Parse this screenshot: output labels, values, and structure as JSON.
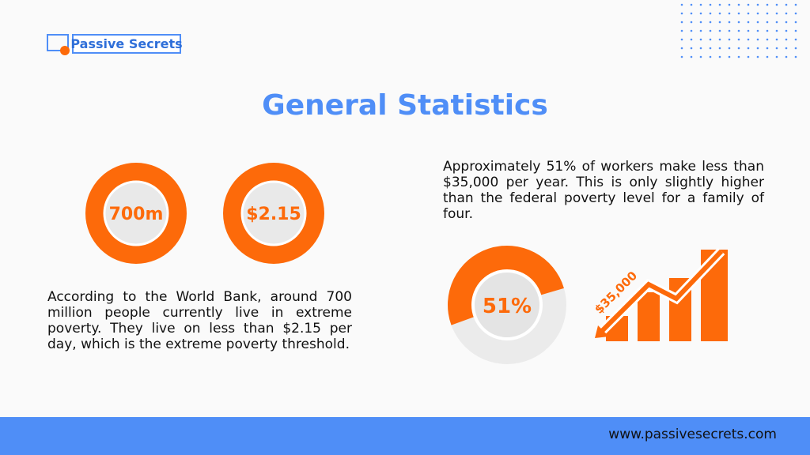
{
  "logo": {
    "text": "Passive Secrets"
  },
  "title": "General Statistics",
  "stats": [
    {
      "label": "700m"
    },
    {
      "label": "$2.15"
    }
  ],
  "left_text": "According to the World Bank, around 700 million people currently live in extreme poverty. They live on less than $2.15 per day, which is the extreme poverty threshold.",
  "right_text": "Approximately 51% of workers make less than $35,000 per year. This is only slightly higher than the federal poverty level for a family of four.",
  "donut": {
    "value": 51,
    "label": "51%"
  },
  "trend_label": "$35,000",
  "footer": {
    "url": "www.passivesecrets.com"
  }
}
